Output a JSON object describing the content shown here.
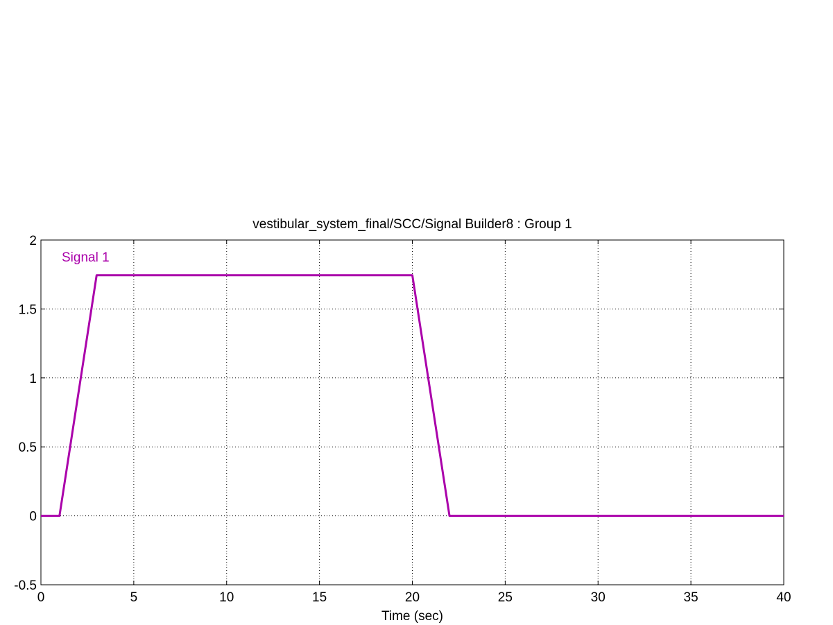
{
  "chart_data": {
    "type": "line",
    "title": "vestibular_system_final/SCC/Signal Builder8 : Group 1",
    "xlabel": "Time (sec)",
    "ylabel": "",
    "xlim": [
      0,
      40
    ],
    "ylim": [
      -0.5,
      2
    ],
    "xticks": [
      0,
      5,
      10,
      15,
      20,
      25,
      30,
      35,
      40
    ],
    "yticks": [
      -0.5,
      0,
      0.5,
      1,
      1.5,
      2
    ],
    "xtick_labels": [
      "0",
      "5",
      "10",
      "15",
      "20",
      "25",
      "30",
      "35",
      "40"
    ],
    "ytick_labels": [
      "-0.5",
      "0",
      "0.5",
      "1",
      "1.5",
      "2"
    ],
    "grid": true,
    "series": [
      {
        "name": "Signal 1",
        "color": "#aa00aa",
        "x": [
          0,
          1,
          3,
          20,
          22,
          40
        ],
        "y": [
          0,
          0,
          1.745,
          1.745,
          0,
          0
        ]
      }
    ]
  }
}
